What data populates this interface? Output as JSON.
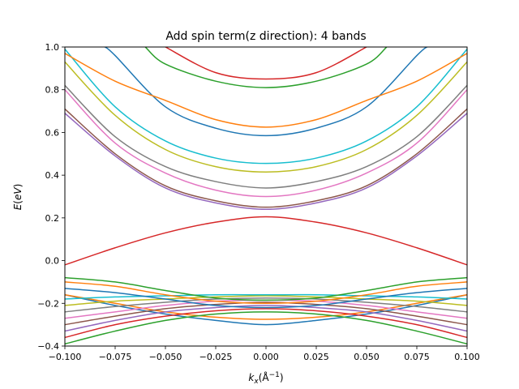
{
  "chart_data": {
    "type": "line",
    "title": "Add spin term(z direction): 4 bands",
    "xlabel": "k_x(Å^-1)",
    "ylabel": "E(eV)",
    "xlim": [
      -0.1,
      0.1
    ],
    "ylim": [
      -0.4,
      1.0
    ],
    "x_ticks": [
      -0.1,
      -0.075,
      -0.05,
      -0.025,
      0.0,
      0.025,
      0.05,
      0.075,
      0.1
    ],
    "x_tick_labels": [
      "−0.100",
      "−0.075",
      "−0.050",
      "−0.025",
      "0.000",
      "0.025",
      "0.050",
      "0.075",
      "0.100"
    ],
    "y_ticks": [
      -0.4,
      -0.2,
      0.0,
      0.2,
      0.4,
      0.6,
      0.8,
      1.0
    ],
    "y_tick_labels": [
      "−0.4",
      "−0.2",
      "0.0",
      "0.2",
      "0.4",
      "0.6",
      "0.8",
      "1.0"
    ],
    "grid": false,
    "legend": "none",
    "palette": [
      "#1f77b4",
      "#ff7f0e",
      "#2ca02c",
      "#d62728",
      "#9467bd",
      "#8c564b",
      "#e377c2",
      "#7f7f7f",
      "#bcbd22",
      "#17becf"
    ],
    "series": [
      {
        "x": [
          -0.1,
          -0.075,
          -0.05,
          -0.025,
          0.0,
          0.025,
          0.05,
          0.075,
          0.1
        ],
        "y": [
          -0.16,
          -0.21,
          -0.25,
          -0.28,
          -0.3,
          -0.28,
          -0.25,
          -0.21,
          -0.16
        ]
      },
      {
        "x": [
          -0.1,
          -0.075,
          -0.05,
          -0.025,
          0.0,
          0.025,
          0.05,
          0.075,
          0.1
        ],
        "y": [
          -0.16,
          -0.2,
          -0.24,
          -0.265,
          -0.275,
          -0.265,
          -0.24,
          -0.2,
          -0.16
        ]
      },
      {
        "x": [
          -0.1,
          -0.075,
          -0.05,
          -0.025,
          0.0,
          0.025,
          0.05,
          0.075,
          0.1
        ],
        "y": [
          -0.39,
          -0.33,
          -0.28,
          -0.25,
          -0.24,
          -0.25,
          -0.28,
          -0.33,
          -0.39
        ]
      },
      {
        "x": [
          -0.1,
          -0.075,
          -0.05,
          -0.025,
          0.0,
          0.025,
          0.05,
          0.075,
          0.1
        ],
        "y": [
          -0.36,
          -0.3,
          -0.26,
          -0.235,
          -0.225,
          -0.235,
          -0.26,
          -0.3,
          -0.36
        ]
      },
      {
        "x": [
          -0.1,
          -0.075,
          -0.05,
          -0.025,
          0.0,
          0.025,
          0.05,
          0.075,
          0.1
        ],
        "y": [
          -0.33,
          -0.28,
          -0.24,
          -0.22,
          -0.21,
          -0.22,
          -0.24,
          -0.28,
          -0.33
        ]
      },
      {
        "x": [
          -0.1,
          -0.075,
          -0.05,
          -0.025,
          0.0,
          0.025,
          0.05,
          0.075,
          0.1
        ],
        "y": [
          -0.3,
          -0.26,
          -0.225,
          -0.205,
          -0.195,
          -0.205,
          -0.225,
          -0.26,
          -0.3
        ]
      },
      {
        "x": [
          -0.1,
          -0.075,
          -0.05,
          -0.025,
          0.0,
          0.025,
          0.05,
          0.075,
          0.1
        ],
        "y": [
          -0.27,
          -0.24,
          -0.21,
          -0.19,
          -0.185,
          -0.19,
          -0.21,
          -0.24,
          -0.27
        ]
      },
      {
        "x": [
          -0.1,
          -0.075,
          -0.05,
          -0.025,
          0.0,
          0.025,
          0.05,
          0.075,
          0.1
        ],
        "y": [
          -0.24,
          -0.215,
          -0.195,
          -0.18,
          -0.175,
          -0.18,
          -0.195,
          -0.215,
          -0.24
        ]
      },
      {
        "x": [
          -0.1,
          -0.075,
          -0.05,
          -0.025,
          0.0,
          0.025,
          0.05,
          0.075,
          0.1
        ],
        "y": [
          -0.21,
          -0.19,
          -0.18,
          -0.17,
          -0.165,
          -0.17,
          -0.18,
          -0.19,
          -0.21
        ]
      },
      {
        "x": [
          -0.1,
          -0.075,
          -0.05,
          -0.025,
          0.0,
          0.025,
          0.05,
          0.075,
          0.1
        ],
        "y": [
          -0.18,
          -0.17,
          -0.165,
          -0.16,
          -0.16,
          -0.16,
          -0.165,
          -0.17,
          -0.18
        ]
      },
      {
        "x": [
          -0.1,
          -0.075,
          -0.05,
          -0.025,
          0.0,
          0.025,
          0.05,
          0.075,
          0.1
        ],
        "y": [
          -0.13,
          -0.15,
          -0.18,
          -0.21,
          -0.22,
          -0.21,
          -0.18,
          -0.15,
          -0.13
        ]
      },
      {
        "x": [
          -0.1,
          -0.075,
          -0.05,
          -0.025,
          0.0,
          0.025,
          0.05,
          0.075,
          0.1
        ],
        "y": [
          -0.1,
          -0.12,
          -0.16,
          -0.19,
          -0.2,
          -0.19,
          -0.16,
          -0.12,
          -0.1
        ]
      },
      {
        "x": [
          -0.1,
          -0.075,
          -0.05,
          -0.025,
          0.0,
          0.025,
          0.05,
          0.075,
          0.1
        ],
        "y": [
          -0.08,
          -0.1,
          -0.14,
          -0.175,
          -0.185,
          -0.175,
          -0.14,
          -0.1,
          -0.08
        ]
      },
      {
        "x": [
          -0.1,
          -0.075,
          -0.05,
          -0.025,
          0.0,
          0.025,
          0.05,
          0.075,
          0.1
        ],
        "y": [
          -0.02,
          0.06,
          0.13,
          0.18,
          0.205,
          0.18,
          0.13,
          0.06,
          -0.02
        ]
      },
      {
        "x": [
          -0.1,
          -0.075,
          -0.05,
          -0.025,
          0.0,
          0.025,
          0.05,
          0.075,
          0.1
        ],
        "y": [
          0.69,
          0.49,
          0.34,
          0.27,
          0.24,
          0.27,
          0.34,
          0.49,
          0.69
        ]
      },
      {
        "x": [
          -0.1,
          -0.075,
          -0.05,
          -0.025,
          0.0,
          0.025,
          0.05,
          0.075,
          0.1
        ],
        "y": [
          0.71,
          0.5,
          0.35,
          0.28,
          0.25,
          0.28,
          0.35,
          0.5,
          0.71
        ]
      },
      {
        "x": [
          -0.1,
          -0.075,
          -0.05,
          -0.025,
          0.0,
          0.025,
          0.05,
          0.075,
          0.1
        ],
        "y": [
          0.8,
          0.55,
          0.41,
          0.33,
          0.3,
          0.33,
          0.41,
          0.55,
          0.8
        ]
      },
      {
        "x": [
          -0.1,
          -0.075,
          -0.05,
          -0.025,
          0.0,
          0.025,
          0.05,
          0.075,
          0.1
        ],
        "y": [
          0.82,
          0.58,
          0.44,
          0.37,
          0.34,
          0.37,
          0.44,
          0.58,
          0.82
        ]
      },
      {
        "x": [
          -0.1,
          -0.075,
          -0.05,
          -0.025,
          0.0,
          0.025,
          0.05,
          0.075,
          0.1
        ],
        "y": [
          0.93,
          0.68,
          0.52,
          0.44,
          0.415,
          0.44,
          0.52,
          0.68,
          0.93
        ]
      },
      {
        "x": [
          -0.1,
          -0.075,
          -0.05,
          -0.025,
          0.0,
          0.025,
          0.05,
          0.075,
          0.1
        ],
        "y": [
          0.99,
          0.72,
          0.56,
          0.48,
          0.455,
          0.48,
          0.56,
          0.72,
          0.99
        ]
      },
      {
        "x": [
          -0.08,
          -0.075,
          -0.05,
          -0.025,
          0.0,
          0.025,
          0.05,
          0.075,
          0.08
        ],
        "y": [
          1.0,
          0.96,
          0.72,
          0.62,
          0.585,
          0.62,
          0.72,
          0.96,
          1.0
        ]
      },
      {
        "x": [
          -0.1,
          -0.075,
          -0.05,
          -0.025,
          0.0,
          0.025,
          0.05,
          0.075,
          0.1
        ],
        "y": [
          0.97,
          0.84,
          0.75,
          0.66,
          0.625,
          0.66,
          0.75,
          0.84,
          0.97
        ]
      },
      {
        "x": [
          -0.06,
          -0.05,
          -0.025,
          0.0,
          0.025,
          0.05,
          0.06
        ],
        "y": [
          1.0,
          0.92,
          0.84,
          0.81,
          0.84,
          0.92,
          1.0
        ]
      },
      {
        "x": [
          -0.05,
          -0.025,
          0.0,
          0.025,
          0.05
        ],
        "y": [
          1.0,
          0.88,
          0.85,
          0.88,
          1.0
        ]
      }
    ]
  }
}
